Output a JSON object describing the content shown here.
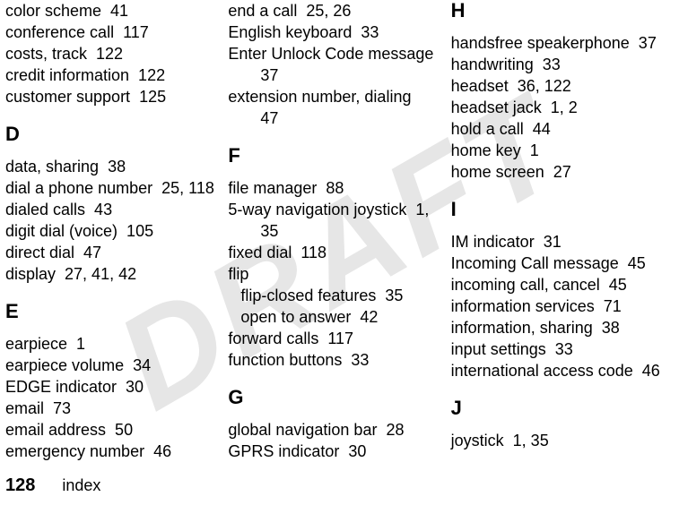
{
  "watermark_text": "DRAFT",
  "page_number": "128",
  "footer_label": "index",
  "columns": [
    {
      "items": [
        {
          "type": "entry",
          "text": "color scheme  41"
        },
        {
          "type": "entry",
          "text": "conference call  117"
        },
        {
          "type": "entry",
          "text": "costs, track  122"
        },
        {
          "type": "entry",
          "text": "credit information  122"
        },
        {
          "type": "entry",
          "text": "customer support  125"
        },
        {
          "type": "letter",
          "text": "D"
        },
        {
          "type": "entry",
          "text": "data, sharing  38"
        },
        {
          "type": "entry",
          "text": "dial a phone number  25, 118"
        },
        {
          "type": "entry",
          "text": "dialed calls  43"
        },
        {
          "type": "entry",
          "text": "digit dial (voice)  105"
        },
        {
          "type": "entry",
          "text": "direct dial  47"
        },
        {
          "type": "entry",
          "text": "display  27, 41, 42"
        },
        {
          "type": "letter",
          "text": "E"
        },
        {
          "type": "entry",
          "text": "earpiece  1"
        },
        {
          "type": "entry",
          "text": "earpiece volume  34"
        },
        {
          "type": "entry",
          "text": "EDGE indicator  30"
        },
        {
          "type": "entry",
          "text": "email  73"
        },
        {
          "type": "entry",
          "text": "email address  50"
        },
        {
          "type": "entry",
          "text": "emergency number  46"
        }
      ]
    },
    {
      "items": [
        {
          "type": "entry",
          "text": "end a call  25, 26"
        },
        {
          "type": "entry",
          "text": "English keyboard  33"
        },
        {
          "type": "entry",
          "text": "Enter Unlock Code message "
        },
        {
          "type": "sub",
          "text": "37"
        },
        {
          "type": "entry",
          "text": "extension number, dialing "
        },
        {
          "type": "sub",
          "text": "47"
        },
        {
          "type": "letter",
          "text": "F"
        },
        {
          "type": "entry",
          "text": "file manager  88"
        },
        {
          "type": "entry",
          "text": "5-way navigation joystick  1, "
        },
        {
          "type": "sub",
          "text": "35"
        },
        {
          "type": "entry",
          "text": "fixed dial  118"
        },
        {
          "type": "entry",
          "text": "flip"
        },
        {
          "type": "subsub",
          "text": "flip-closed features  35"
        },
        {
          "type": "subsub",
          "text": "open to answer  42"
        },
        {
          "type": "entry",
          "text": "forward calls  117"
        },
        {
          "type": "entry",
          "text": "function buttons  33"
        },
        {
          "type": "letter",
          "text": "G"
        },
        {
          "type": "entry",
          "text": "global navigation bar  28"
        },
        {
          "type": "entry",
          "text": "GPRS indicator  30"
        }
      ]
    },
    {
      "items": [
        {
          "type": "letter-top",
          "text": "H"
        },
        {
          "type": "entry",
          "text": "handsfree speakerphone  37"
        },
        {
          "type": "entry",
          "text": "handwriting  33"
        },
        {
          "type": "entry",
          "text": "headset  36, 122"
        },
        {
          "type": "entry",
          "text": "headset jack  1, 2"
        },
        {
          "type": "entry",
          "text": "hold a call  44"
        },
        {
          "type": "entry",
          "text": "home key  1"
        },
        {
          "type": "entry",
          "text": "home screen  27"
        },
        {
          "type": "letter",
          "text": "I"
        },
        {
          "type": "entry",
          "text": "IM indicator  31"
        },
        {
          "type": "entry",
          "text": "Incoming Call message  45"
        },
        {
          "type": "entry",
          "text": "incoming call, cancel  45"
        },
        {
          "type": "entry",
          "text": "information services  71"
        },
        {
          "type": "entry",
          "text": "information, sharing  38"
        },
        {
          "type": "entry",
          "text": "input settings  33"
        },
        {
          "type": "entry",
          "text": "international access code  46"
        },
        {
          "type": "letter",
          "text": "J"
        },
        {
          "type": "entry",
          "text": "joystick  1, 35"
        }
      ]
    }
  ]
}
